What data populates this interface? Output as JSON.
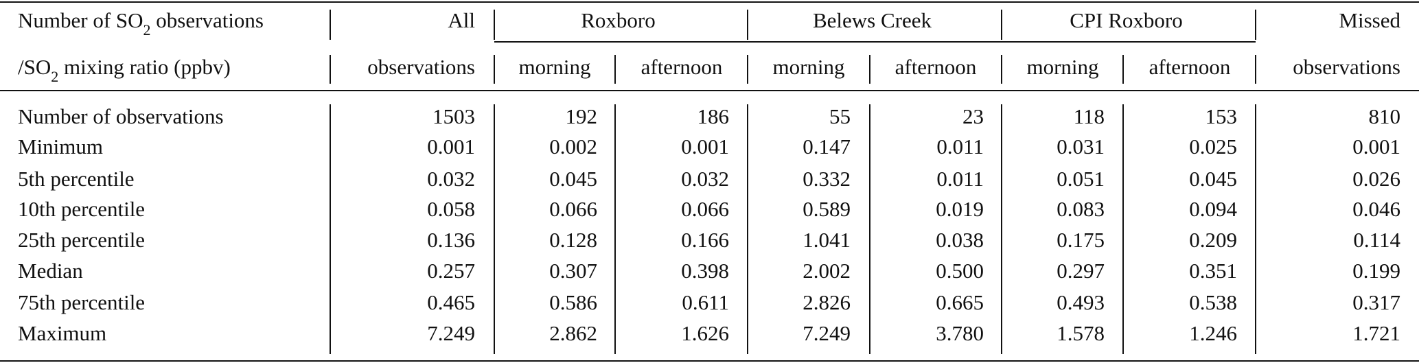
{
  "header": {
    "row_label": [
      [
        "Number of SO",
        "2",
        " observations"
      ],
      [
        "/SO",
        "2",
        " mixing ratio (ppbv)"
      ]
    ],
    "all": [
      "All",
      "observations"
    ],
    "groups": [
      {
        "name": "Roxboro",
        "subcolumns": [
          "morning",
          "afternoon"
        ]
      },
      {
        "name": "Belews Creek",
        "subcolumns": [
          "morning",
          "afternoon"
        ]
      },
      {
        "name": "CPI Roxboro",
        "subcolumns": [
          "morning",
          "afternoon"
        ]
      }
    ],
    "missed": [
      "Missed",
      "observations"
    ]
  },
  "table": {
    "rows": [
      {
        "label": "Number of observations",
        "values": [
          "1503",
          "192",
          "186",
          "55",
          "23",
          "118",
          "153",
          "810"
        ]
      },
      {
        "label": "Minimum",
        "values": [
          "0.001",
          "0.002",
          "0.001",
          "0.147",
          "0.011",
          "0.031",
          "0.025",
          "0.001"
        ]
      },
      {
        "label": "5th percentile",
        "values": [
          "0.032",
          "0.045",
          "0.032",
          "0.332",
          "0.011",
          "0.051",
          "0.045",
          "0.026"
        ]
      },
      {
        "label": "10th percentile",
        "values": [
          "0.058",
          "0.066",
          "0.066",
          "0.589",
          "0.019",
          "0.083",
          "0.094",
          "0.046"
        ]
      },
      {
        "label": "25th percentile",
        "values": [
          "0.136",
          "0.128",
          "0.166",
          "1.041",
          "0.038",
          "0.175",
          "0.209",
          "0.114"
        ]
      },
      {
        "label": "Median",
        "values": [
          "0.257",
          "0.307",
          "0.398",
          "2.002",
          "0.500",
          "0.297",
          "0.351",
          "0.199"
        ]
      },
      {
        "label": "75th percentile",
        "values": [
          "0.465",
          "0.586",
          "0.611",
          "2.826",
          "0.665",
          "0.493",
          "0.538",
          "0.317"
        ]
      },
      {
        "label": "Maximum",
        "values": [
          "7.249",
          "2.862",
          "1.626",
          "7.249",
          "3.780",
          "1.578",
          "1.246",
          "1.721"
        ]
      }
    ]
  }
}
